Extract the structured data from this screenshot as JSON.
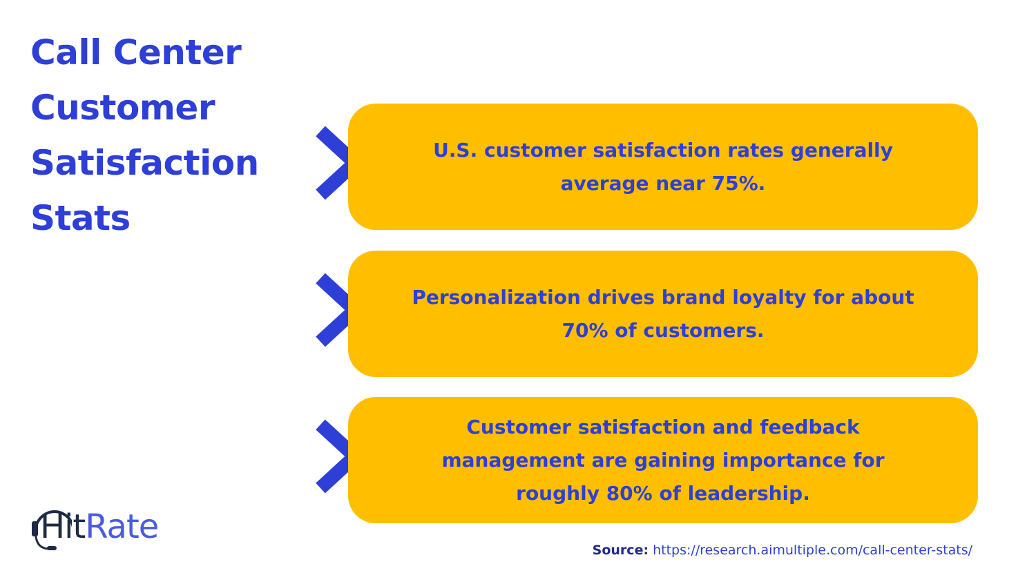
{
  "title_lines": [
    "Call Center",
    "Customer",
    "Satisfaction",
    "Stats"
  ],
  "stats": [
    {
      "lines": [
        "U.S. customer satisfaction rates generally",
        "average near 75%."
      ]
    },
    {
      "lines": [
        "Personalization drives brand loyalty for about",
        "70% of customers."
      ]
    },
    {
      "lines": [
        "Customer satisfaction and feedback",
        "management are gaining importance for",
        "roughly 80% of leadership."
      ]
    }
  ],
  "logo": {
    "hit": "Hit",
    "rate": "Rate"
  },
  "source": {
    "label": "Source:",
    "url": "https://research.aimultiple.com/call-center-stats/"
  },
  "colors": {
    "primary_blue": "#2d3fd6",
    "card_yellow": "#ffbf00",
    "background": "#ffffff",
    "logo_dark": "#1f2a44"
  },
  "icons": {
    "arrow": "chevron-right-icon",
    "logo": "headset-icon"
  }
}
